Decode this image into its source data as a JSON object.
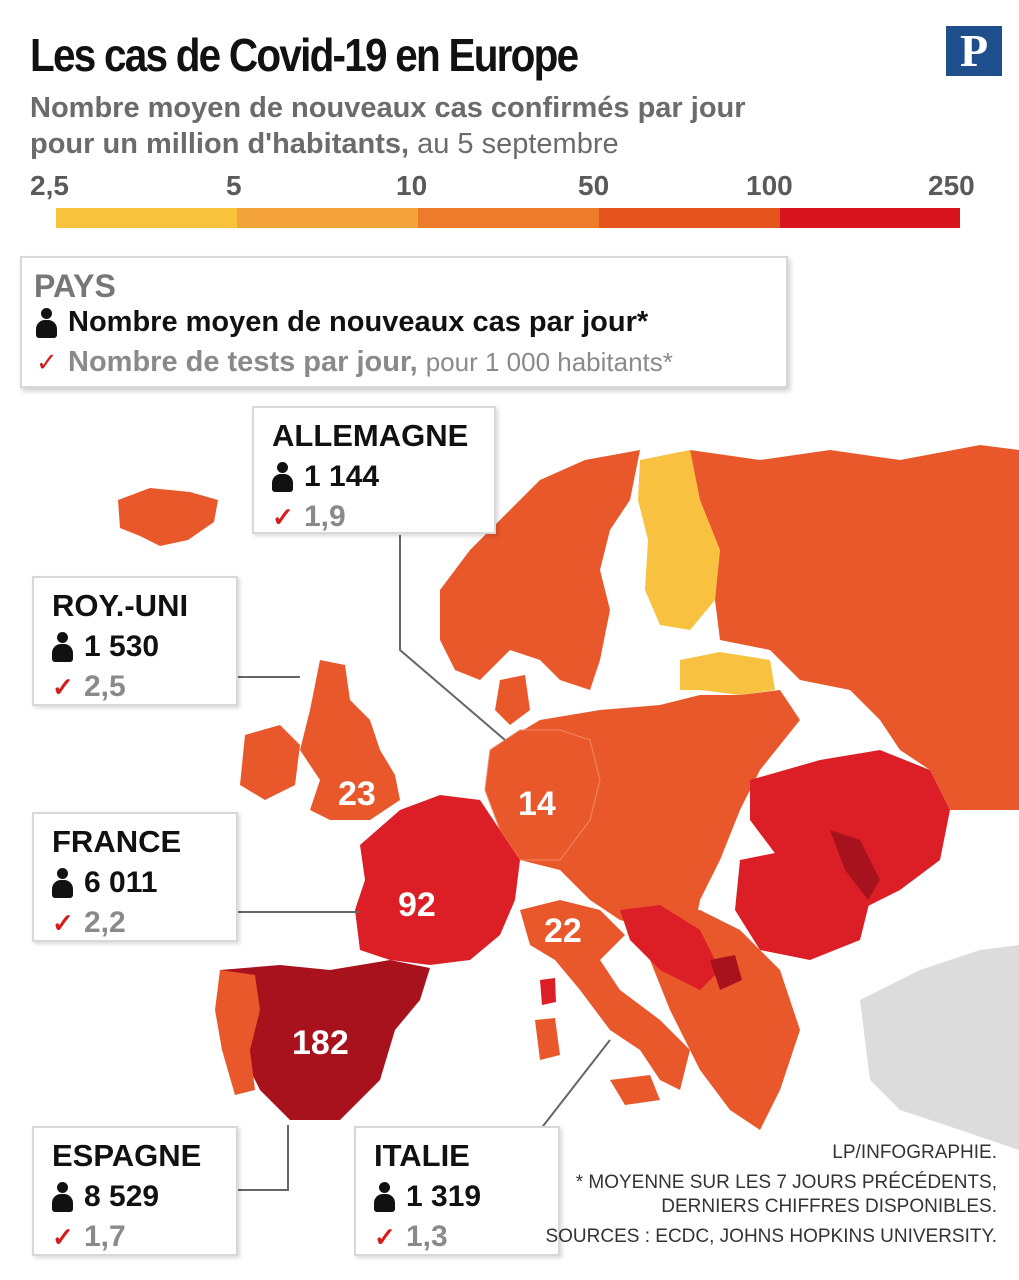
{
  "title": "Les cas de Covid-19 en Europe",
  "logo": "P",
  "subtitle": {
    "line1_bold": "Nombre moyen de nouveaux cas confirmés par jour",
    "line2_bold": "pour un million d'habitants,",
    "line2_rest": " au 5 septembre"
  },
  "legend": {
    "labels": [
      "2,5",
      "5",
      "10",
      "50",
      "100",
      "250"
    ],
    "colors": [
      "#f9c23c",
      "#f4a23a",
      "#ee7a2c",
      "#e5541f",
      "#d8141e",
      "#a8101a"
    ]
  },
  "key_box": {
    "title": "PAYS",
    "cases_label": "Nombre moyen de nouveaux cas par jour*",
    "tests_label": "Nombre de tests par jour,",
    "tests_unit": "pour 1 000 habitants*"
  },
  "countries": [
    {
      "name": "ALLEMAGNE",
      "cases": "1 144",
      "tests": "1,9",
      "map_value": "14"
    },
    {
      "name": "ROY.-UNI",
      "cases": "1 530",
      "tests": "2,5",
      "map_value": "23"
    },
    {
      "name": "FRANCE",
      "cases": "6 011",
      "tests": "2,2",
      "map_value": "92"
    },
    {
      "name": "ESPAGNE",
      "cases": "8 529",
      "tests": "1,7",
      "map_value": "182"
    },
    {
      "name": "ITALIE",
      "cases": "1 319",
      "tests": "1,3",
      "map_value": "22"
    }
  ],
  "map_colors": {
    "orange": "#e8582a",
    "red": "#dc1f26",
    "dark_red": "#a8121c",
    "yellow": "#f8c240",
    "grey": "#dcdcdc"
  },
  "footnotes": {
    "credit": "LP/INFOGRAPHIE.",
    "note_line1": "* MOYENNE SUR LES 7 JOURS PRÉCÉDENTS,",
    "note_line2": "DERNIERS CHIFFRES DISPONIBLES.",
    "sources": "SOURCES : ECDC, JOHNS HOPKINS UNIVERSITY."
  }
}
